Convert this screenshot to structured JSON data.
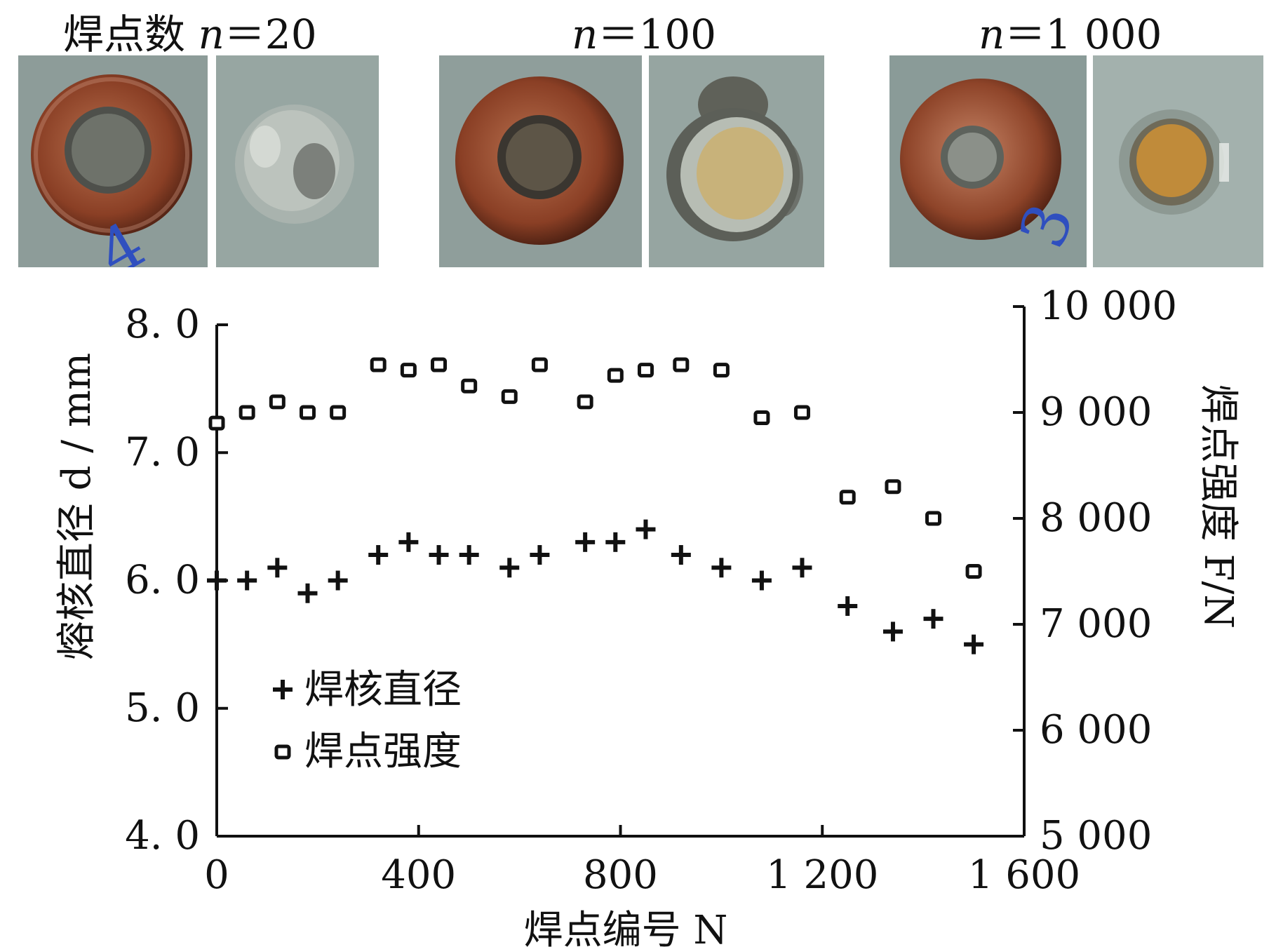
{
  "captions": [
    {
      "prefix": "焊点数 ",
      "var": "n",
      "eq": "＝20"
    },
    {
      "prefix": "",
      "var": "n",
      "eq": "＝100"
    },
    {
      "prefix": "",
      "var": "n",
      "eq": "＝1 000"
    }
  ],
  "photos": [
    {
      "caption_group": 0,
      "kind": "electrode",
      "mark": "4"
    },
    {
      "caption_group": 0,
      "kind": "spot"
    },
    {
      "caption_group": 1,
      "kind": "electrode"
    },
    {
      "caption_group": 1,
      "kind": "spot"
    },
    {
      "caption_group": 2,
      "kind": "electrode",
      "mark": "3"
    },
    {
      "caption_group": 2,
      "kind": "spot"
    }
  ],
  "chart_data": {
    "type": "scatter",
    "xlabel": "焊点编号 N",
    "ylabel_left": "熔核直径 d / mm",
    "ylabel_right": "焊点强度 F/N",
    "xlim": [
      0,
      1600
    ],
    "ylim_left": [
      4.0,
      8.0
    ],
    "ylim_right": [
      5000,
      10000
    ],
    "x_ticks": [
      "0",
      "400",
      "800",
      "1 200",
      "1 600"
    ],
    "y_left_ticks": [
      "4. 0",
      "5. 0",
      "6. 0",
      "7. 0",
      "8. 0"
    ],
    "y_right_ticks": [
      "5 000",
      "6 000",
      "7 000",
      "8 000",
      "9 000",
      "10 000"
    ],
    "legend_position": "lower-left",
    "series": [
      {
        "name": "焊核直径",
        "axis": "left",
        "marker": "plus",
        "x": [
          0,
          60,
          120,
          180,
          240,
          320,
          380,
          440,
          500,
          580,
          640,
          730,
          790,
          850,
          920,
          1000,
          1080,
          1160,
          1250,
          1340,
          1420,
          1500
        ],
        "y": [
          6.0,
          6.0,
          6.1,
          5.9,
          6.0,
          6.2,
          6.3,
          6.2,
          6.2,
          6.1,
          6.2,
          6.3,
          6.3,
          6.4,
          6.2,
          6.1,
          6.0,
          6.1,
          5.8,
          5.6,
          5.7,
          5.5
        ]
      },
      {
        "name": "焊点强度",
        "axis": "right",
        "marker": "square",
        "x": [
          0,
          60,
          120,
          180,
          240,
          320,
          380,
          440,
          500,
          580,
          640,
          730,
          790,
          850,
          920,
          1000,
          1080,
          1160,
          1250,
          1340,
          1420,
          1500
        ],
        "y": [
          8900,
          9000,
          9100,
          9000,
          9000,
          9450,
          9400,
          9450,
          9250,
          9150,
          9450,
          9100,
          9350,
          9400,
          9450,
          9400,
          8950,
          9000,
          8200,
          8300,
          8000,
          7500
        ]
      }
    ]
  }
}
